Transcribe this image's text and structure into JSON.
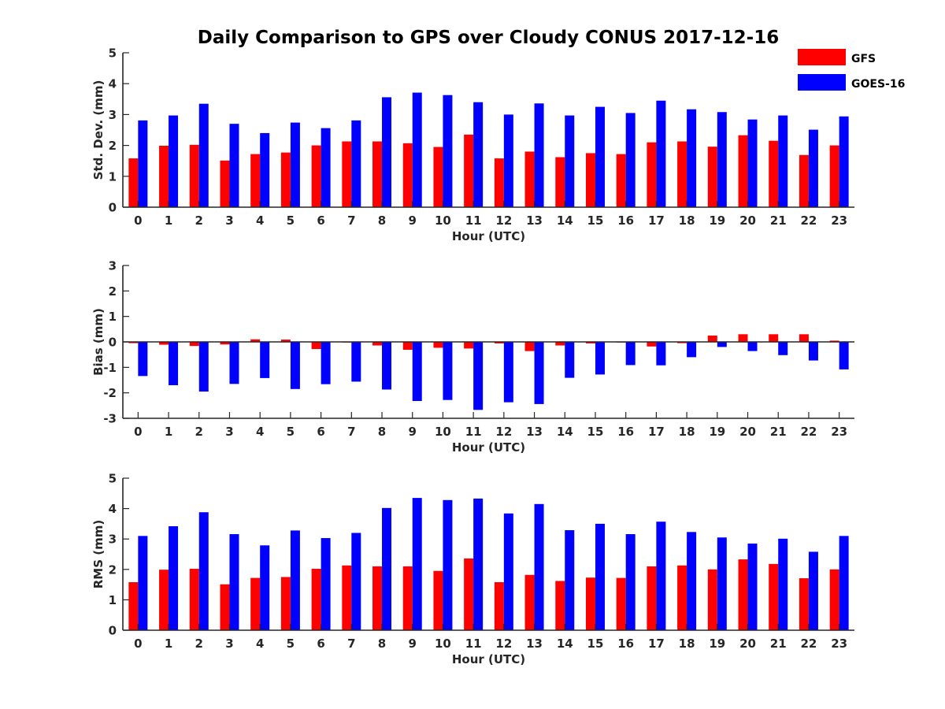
{
  "figure": {
    "title": "Daily Comparison to GPS over Cloudy CONUS 2017-12-16"
  },
  "legend": {
    "placement": "top-right",
    "entries": [
      {
        "name": "GFS",
        "color": "#ff0000"
      },
      {
        "name": "GOES-16",
        "color": "#0000ff"
      }
    ]
  },
  "chart_data": [
    {
      "type": "bar",
      "xlabel": "Hour (UTC)",
      "ylabel": "Std. Dev. (mm)",
      "ylim": [
        0,
        5
      ],
      "yticks": [
        0,
        1,
        2,
        3,
        4,
        5
      ],
      "categories": [
        "0",
        "1",
        "2",
        "3",
        "4",
        "5",
        "6",
        "7",
        "8",
        "9",
        "10",
        "11",
        "12",
        "13",
        "14",
        "15",
        "16",
        "17",
        "18",
        "19",
        "20",
        "21",
        "22",
        "23"
      ],
      "series": [
        {
          "name": "GFS",
          "color": "#ff0000",
          "values": [
            1.58,
            1.99,
            2.02,
            1.51,
            1.72,
            1.77,
            2.0,
            2.13,
            2.13,
            2.07,
            1.95,
            2.35,
            1.58,
            1.8,
            1.62,
            1.75,
            1.72,
            2.1,
            2.13,
            1.96,
            2.33,
            2.15,
            1.69,
            2.0
          ]
        },
        {
          "name": "GOES-16",
          "color": "#0000ff",
          "values": [
            2.81,
            2.97,
            3.35,
            2.7,
            2.4,
            2.74,
            2.56,
            2.81,
            3.56,
            3.71,
            3.63,
            3.4,
            3.0,
            3.36,
            2.97,
            3.25,
            3.05,
            3.45,
            3.17,
            3.08,
            2.84,
            2.97,
            2.51,
            2.94
          ]
        }
      ]
    },
    {
      "type": "bar",
      "xlabel": "Hour (UTC)",
      "ylabel": "Bias (mm)",
      "ylim": [
        -3,
        3
      ],
      "yticks": [
        -3,
        -2,
        -1,
        0,
        1,
        2,
        3
      ],
      "zero_line": true,
      "categories": [
        "0",
        "1",
        "2",
        "3",
        "4",
        "5",
        "6",
        "7",
        "8",
        "9",
        "10",
        "11",
        "12",
        "13",
        "14",
        "15",
        "16",
        "17",
        "18",
        "19",
        "20",
        "21",
        "22",
        "23"
      ],
      "series": [
        {
          "name": "GFS",
          "color": "#ff0000",
          "values": [
            -0.05,
            -0.11,
            -0.16,
            -0.1,
            0.1,
            0.09,
            -0.28,
            -0.02,
            -0.14,
            -0.31,
            -0.23,
            -0.26,
            -0.06,
            -0.36,
            -0.14,
            -0.06,
            0.0,
            -0.18,
            -0.05,
            0.25,
            0.3,
            0.3,
            0.3,
            0.05
          ]
        },
        {
          "name": "GOES-16",
          "color": "#0000ff",
          "values": [
            -1.34,
            -1.7,
            -1.95,
            -1.65,
            -1.42,
            -1.85,
            -1.66,
            -1.56,
            -1.87,
            -2.32,
            -2.28,
            -2.67,
            -2.37,
            -2.44,
            -1.41,
            -1.28,
            -0.91,
            -0.92,
            -0.6,
            -0.2,
            -0.36,
            -0.52,
            -0.73,
            -1.08
          ]
        }
      ]
    },
    {
      "type": "bar",
      "xlabel": "Hour (UTC)",
      "ylabel": "RMS (mm)",
      "ylim": [
        0,
        5
      ],
      "yticks": [
        0,
        1,
        2,
        3,
        4,
        5
      ],
      "categories": [
        "0",
        "1",
        "2",
        "3",
        "4",
        "5",
        "6",
        "7",
        "8",
        "9",
        "10",
        "11",
        "12",
        "13",
        "14",
        "15",
        "16",
        "17",
        "18",
        "19",
        "20",
        "21",
        "22",
        "23"
      ],
      "series": [
        {
          "name": "GFS",
          "color": "#ff0000",
          "values": [
            1.58,
            1.99,
            2.02,
            1.51,
            1.72,
            1.75,
            2.02,
            2.13,
            2.1,
            2.1,
            1.95,
            2.36,
            1.58,
            1.82,
            1.62,
            1.73,
            1.72,
            2.1,
            2.13,
            2.0,
            2.33,
            2.18,
            1.71,
            2.0
          ]
        },
        {
          "name": "GOES-16",
          "color": "#0000ff",
          "values": [
            3.1,
            3.42,
            3.88,
            3.16,
            2.79,
            3.28,
            3.03,
            3.2,
            4.02,
            4.35,
            4.28,
            4.33,
            3.84,
            4.15,
            3.29,
            3.5,
            3.16,
            3.57,
            3.23,
            3.05,
            2.85,
            3.01,
            2.58,
            3.1
          ]
        }
      ]
    }
  ]
}
